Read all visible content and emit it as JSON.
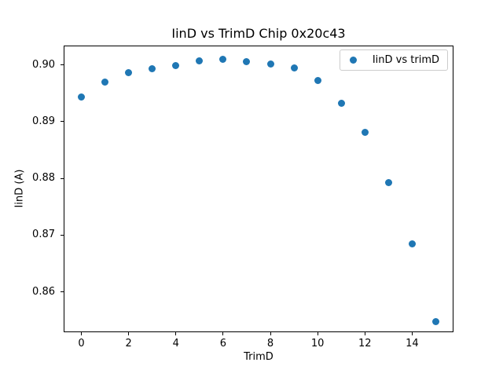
{
  "chart_data": {
    "type": "scatter",
    "title": "IinD vs TrimD Chip 0x20c43",
    "xlabel": "TrimD",
    "ylabel": "IinD (A)",
    "grid": false,
    "xlim": [
      -0.75,
      15.75
    ],
    "ylim": [
      0.8529,
      0.9034
    ],
    "xticks": {
      "values": [
        0,
        2,
        4,
        6,
        8,
        10,
        12,
        14
      ],
      "labels": [
        "0",
        "2",
        "4",
        "6",
        "8",
        "10",
        "12",
        "14"
      ]
    },
    "yticks": {
      "values": [
        0.86,
        0.87,
        0.88,
        0.89,
        0.9
      ],
      "labels": [
        "0.86",
        "0.87",
        "0.88",
        "0.89",
        "0.90"
      ]
    },
    "legend": {
      "position": "upper right"
    },
    "series": [
      {
        "name": "IinD vs trimD",
        "marker": "circle",
        "color": "#1f77b4",
        "x": [
          0,
          1,
          2,
          3,
          4,
          5,
          6,
          7,
          8,
          9,
          10,
          11,
          12,
          13,
          14,
          15
        ],
        "y": [
          0.8944,
          0.8969,
          0.8986,
          0.8993,
          0.8999,
          0.9007,
          0.901,
          0.9006,
          0.9002,
          0.8994,
          0.8972,
          0.8933,
          0.8881,
          0.8793,
          0.8684,
          0.8548
        ]
      }
    ]
  }
}
